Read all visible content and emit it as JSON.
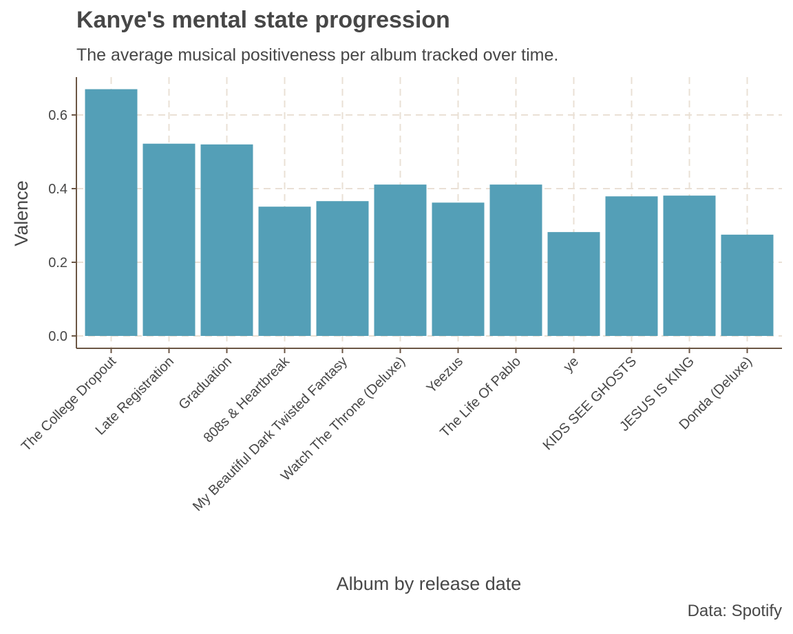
{
  "chart_data": {
    "type": "bar",
    "title": "Kanye's mental state progression",
    "subtitle": "The average musical positiveness per album tracked over time.",
    "caption": "Data: Spotify",
    "xlabel": "Album by release date",
    "ylabel": "Valence",
    "categories": [
      "The College Dropout",
      "Late Registration",
      "Graduation",
      "808s & Heartbreak",
      "My Beautiful Dark Twisted Fantasy",
      "Watch The Throne (Deluxe)",
      "Yeezus",
      "The Life Of Pablo",
      "ye",
      "KIDS SEE GHOSTS",
      "JESUS IS KING",
      "Donda (Deluxe)"
    ],
    "values": [
      0.67,
      0.522,
      0.52,
      0.351,
      0.366,
      0.411,
      0.362,
      0.411,
      0.282,
      0.379,
      0.381,
      0.275
    ],
    "yticks": [
      "0.0",
      "0.2",
      "0.4",
      "0.6"
    ],
    "ylim": [
      -0.03,
      0.7
    ],
    "grid": true,
    "colors": {
      "bar": "#549fb7",
      "grid": "#eae0d5",
      "axis": "#6b5644"
    }
  }
}
